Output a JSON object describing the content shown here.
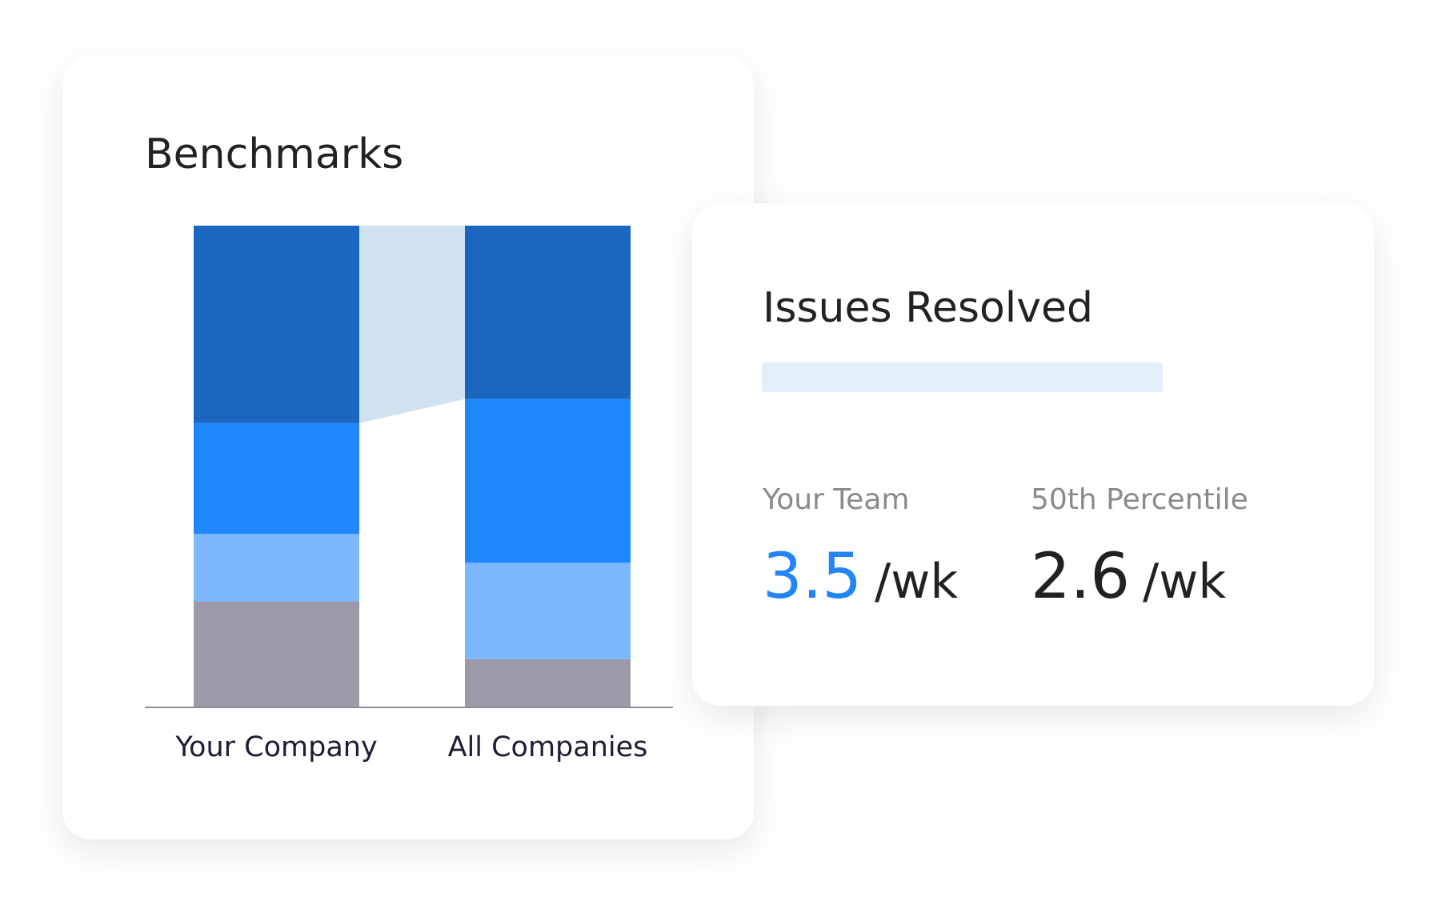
{
  "chart_data": {
    "type": "stacked_bar",
    "title": "Benchmarks",
    "categories": [
      "Your Company",
      "All Companies"
    ],
    "series": [
      {
        "color": "#9d9aaa",
        "values": [
          22,
          10
        ]
      },
      {
        "color": "#7db8ff",
        "values": [
          14,
          20
        ]
      },
      {
        "color": "#2187ff",
        "values": [
          23,
          34
        ]
      },
      {
        "color": "#1a66c0",
        "values": [
          41,
          36
        ]
      }
    ],
    "connector_color": "#d0e1f0",
    "ylim": [
      0,
      100
    ]
  },
  "issues_card": {
    "title": "Issues Resolved",
    "stats": [
      {
        "label": "Your Team",
        "value": 3.5,
        "unit": "/wk",
        "color": "#2185f5"
      },
      {
        "label": "50th Percentile",
        "value": 2.6,
        "unit": "/wk",
        "color": "#222222"
      }
    ]
  }
}
